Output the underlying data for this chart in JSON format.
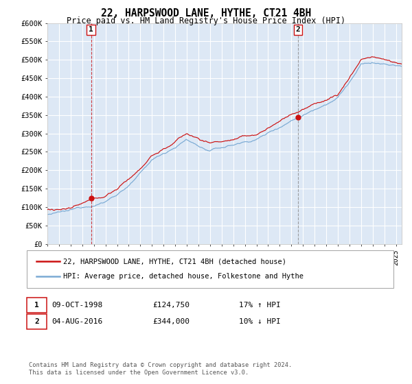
{
  "title": "22, HARPSWOOD LANE, HYTHE, CT21 4BH",
  "subtitle": "Price paid vs. HM Land Registry's House Price Index (HPI)",
  "ylabel_ticks": [
    "£0",
    "£50K",
    "£100K",
    "£150K",
    "£200K",
    "£250K",
    "£300K",
    "£350K",
    "£400K",
    "£450K",
    "£500K",
    "£550K",
    "£600K"
  ],
  "ytick_values": [
    0,
    50000,
    100000,
    150000,
    200000,
    250000,
    300000,
    350000,
    400000,
    450000,
    500000,
    550000,
    600000
  ],
  "hpi_color": "#7aaad4",
  "price_color": "#cc1111",
  "bg_color": "#dde8f5",
  "grid_color": "#ffffff",
  "sale1_date": "09-OCT-1998",
  "sale1_price": 124750,
  "sale1_hpi_pct": "17% ↑ HPI",
  "sale1_year": 1998.78,
  "sale2_date": "04-AUG-2016",
  "sale2_price": 344000,
  "sale2_hpi_pct": "10% ↓ HPI",
  "sale2_year": 2016.59,
  "legend_line1": "22, HARPSWOOD LANE, HYTHE, CT21 4BH (detached house)",
  "legend_line2": "HPI: Average price, detached house, Folkestone and Hythe",
  "footnote": "Contains HM Land Registry data © Crown copyright and database right 2024.\nThis data is licensed under the Open Government Licence v3.0.",
  "xmin": 1995.0,
  "xmax": 2025.5,
  "ymin": 0,
  "ymax": 600000
}
